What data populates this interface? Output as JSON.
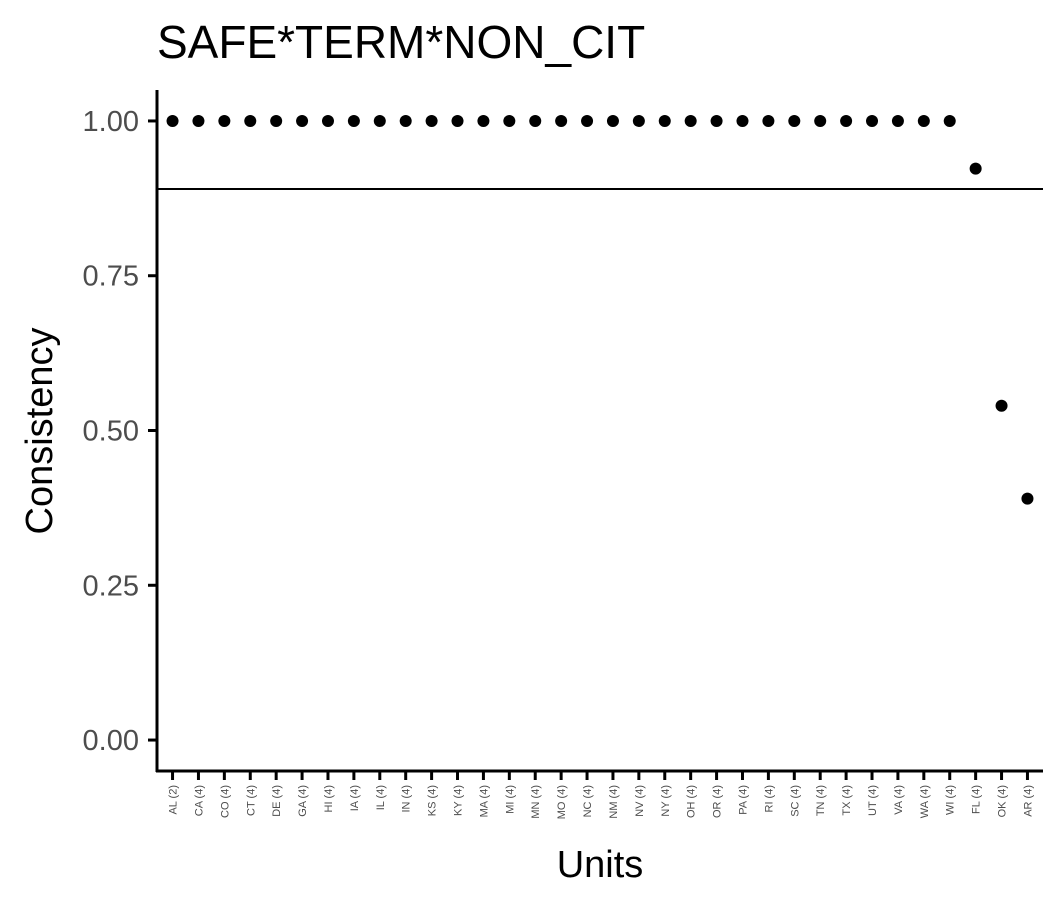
{
  "chart_data": {
    "type": "scatter",
    "title": "SAFE*TERM*NON_CIT",
    "xlabel": "Units",
    "ylabel": "Consistency",
    "ylim": [
      -0.05,
      1.05
    ],
    "y_ticks": [
      0.0,
      0.25,
      0.5,
      0.75,
      1.0
    ],
    "y_tick_labels": [
      "0.00",
      "0.25",
      "0.50",
      "0.75",
      "1.00"
    ],
    "reference_line": 0.89,
    "grid": false,
    "categories": [
      "AL (2)",
      "CA (4)",
      "CO (4)",
      "CT (4)",
      "DE (4)",
      "GA (4)",
      "HI (4)",
      "IA (4)",
      "IL (4)",
      "IN (4)",
      "KS (4)",
      "KY (4)",
      "MA (4)",
      "MI (4)",
      "MN (4)",
      "MO (4)",
      "NC (4)",
      "NM (4)",
      "NV (4)",
      "NY (4)",
      "OH (4)",
      "OR (4)",
      "PA (4)",
      "RI (4)",
      "SC (4)",
      "TN (4)",
      "TX (4)",
      "UT (4)",
      "VA (4)",
      "WA (4)",
      "WI (4)",
      "FL (4)",
      "OK (4)",
      "AR (4)"
    ],
    "values": [
      1,
      1,
      1,
      1,
      1,
      1,
      1,
      1,
      1,
      1,
      1,
      1,
      1,
      1,
      1,
      1,
      1,
      1,
      1,
      1,
      1,
      1,
      1,
      1,
      1,
      1,
      1,
      1,
      1,
      1,
      1,
      0.923,
      0.54,
      0.39
    ],
    "colors": {
      "points": "#000000",
      "axis": "#000000",
      "tick_label": "#4d4d4d"
    }
  }
}
